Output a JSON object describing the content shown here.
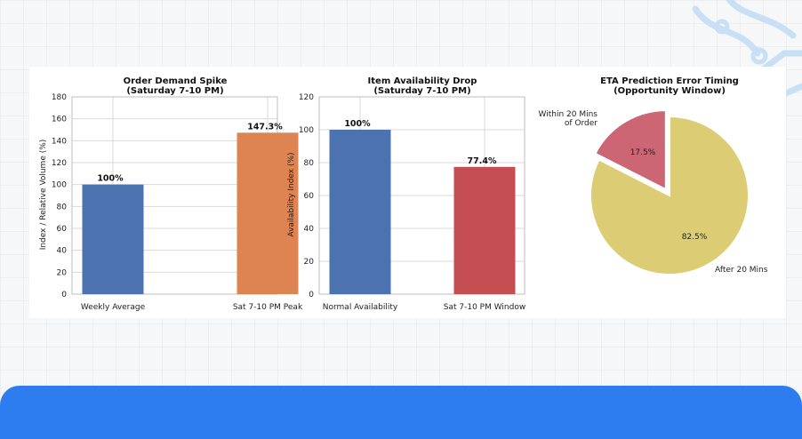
{
  "chart_data": [
    {
      "type": "bar",
      "title_line1": "Order Demand Spike",
      "title_line2": "(Saturday 7-10 PM)",
      "ylabel": "Index / Relative Volume (%)",
      "categories": [
        "Weekly Average",
        "Sat 7-10 PM Peak"
      ],
      "values": [
        100,
        147.3
      ],
      "value_labels": [
        "100%",
        "147.3%"
      ],
      "colors": [
        "#4c72b0",
        "#dd8452"
      ],
      "ylim": [
        0,
        180
      ],
      "yticks": [
        "0",
        "20",
        "40",
        "60",
        "80",
        "100",
        "120",
        "140",
        "160",
        "180"
      ],
      "grid": true
    },
    {
      "type": "bar",
      "title_line1": "Item Availability Drop",
      "title_line2": "(Saturday 7-10 PM)",
      "ylabel": "Availability Index (%)",
      "categories": [
        "Normal Availability",
        "Sat 7-10 PM Window"
      ],
      "values": [
        100,
        77.4
      ],
      "value_labels": [
        "100%",
        "77.4%"
      ],
      "colors": [
        "#4c72b0",
        "#c44e52"
      ],
      "ylim": [
        0,
        120
      ],
      "yticks": [
        "0",
        "20",
        "40",
        "60",
        "80",
        "100",
        "120"
      ],
      "grid": true
    },
    {
      "type": "pie",
      "title_line1": "ETA Prediction Error Timing",
      "title_line2": "(Opportunity Window)",
      "slices": [
        {
          "label_line1": "Within 20 Mins",
          "label_line2": "of Order",
          "value": 17.5,
          "pct": "17.5%",
          "color": "#cc6574",
          "exploded": true
        },
        {
          "label_line1": "After 20 Mins",
          "label_line2": "",
          "value": 82.5,
          "pct": "82.5%",
          "color": "#dccd74",
          "exploded": false
        }
      ]
    }
  ]
}
